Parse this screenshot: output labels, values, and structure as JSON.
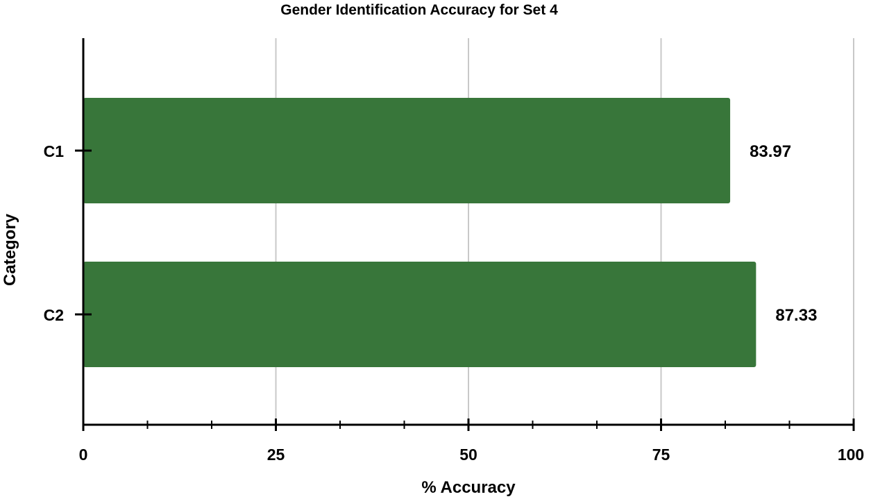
{
  "chart_data": {
    "type": "bar",
    "orientation": "horizontal",
    "title": "Gender Identification Accuracy for Set 4",
    "xlabel": "% Accuracy",
    "ylabel": "Category",
    "categories": [
      "C1",
      "C2"
    ],
    "values": [
      83.97,
      87.33
    ],
    "data_labels": [
      "83.97",
      "87.33"
    ],
    "xlim": [
      0,
      100
    ],
    "x_ticks": [
      0,
      25,
      50,
      75,
      100
    ],
    "x_tick_labels": [
      "0",
      "25",
      "50",
      "75",
      "100"
    ],
    "grid": "vertical",
    "legend": "none",
    "bar_color": "#38763a",
    "gridline_color": "#c8c8c8",
    "axis_color": "#000000"
  }
}
